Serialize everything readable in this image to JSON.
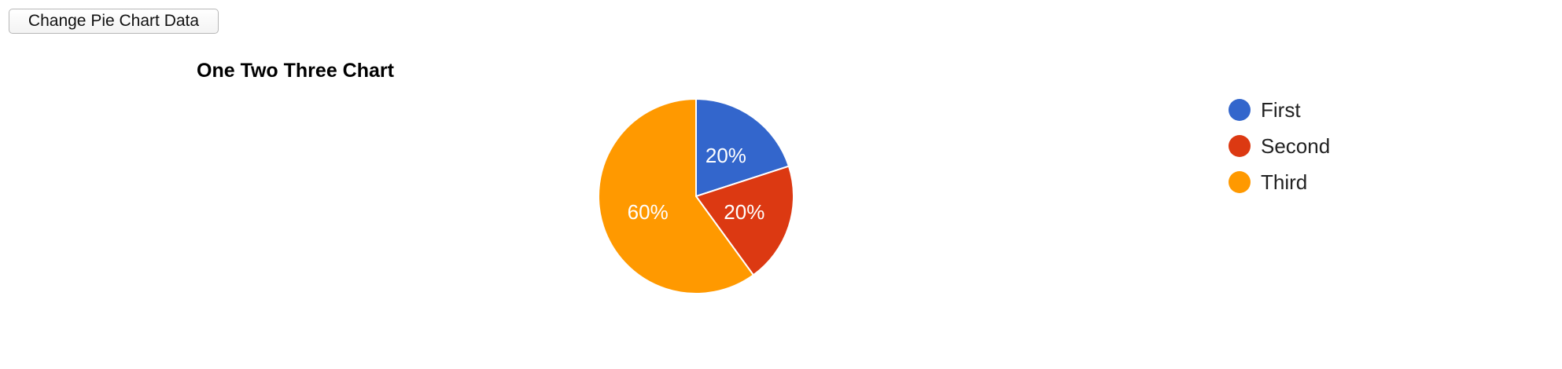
{
  "toolbar": {
    "change_button_label": "Change Pie Chart Data"
  },
  "chart_data": {
    "type": "pie",
    "title": "One Two Three Chart",
    "legend_position": "right",
    "slices": [
      {
        "label": "First",
        "value": 20,
        "percent_label": "20%",
        "color": "#3366cc"
      },
      {
        "label": "Second",
        "value": 20,
        "percent_label": "20%",
        "color": "#dc3912"
      },
      {
        "label": "Third",
        "value": 60,
        "percent_label": "60%",
        "color": "#ff9900"
      }
    ]
  }
}
